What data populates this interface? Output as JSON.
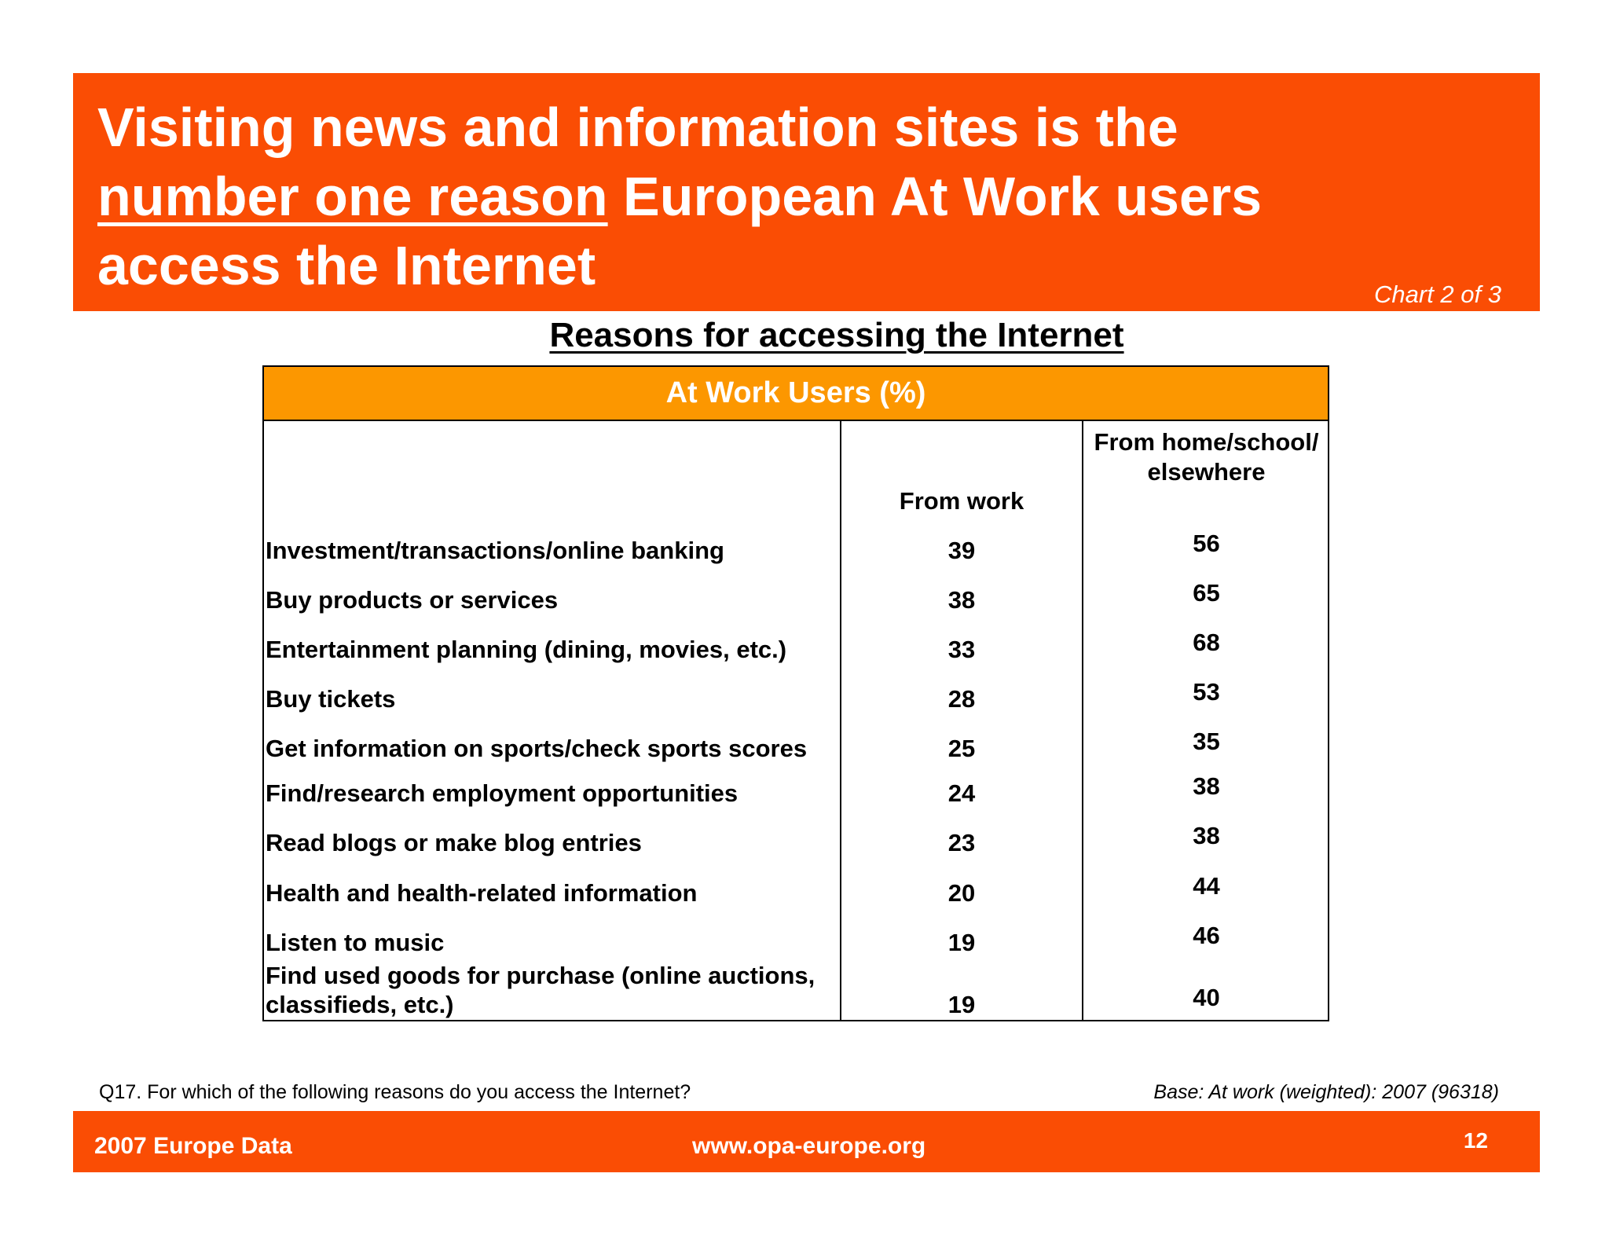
{
  "header": {
    "title_line1": "Visiting news and information sites is the",
    "title_underlined": "number one reason",
    "title_line2_rest": " European At Work users",
    "title_line3": "access the Internet",
    "chart_counter": "Chart 2 of 3"
  },
  "table": {
    "title": "Reasons for accessing the Internet",
    "group_header": "At Work Users (%)",
    "columns": [
      "From work",
      "From home/school/ elsewhere"
    ],
    "rows": [
      {
        "label": "Investment/transactions/online banking",
        "from_work": "39",
        "from_home": "56"
      },
      {
        "label": "Buy products or services",
        "from_work": "38",
        "from_home": "65"
      },
      {
        "label": "Entertainment planning (dining, movies, etc.)",
        "from_work": "33",
        "from_home": "68"
      },
      {
        "label": "Buy tickets",
        "from_work": "28",
        "from_home": "53"
      },
      {
        "label": "Get information on sports/check sports scores",
        "from_work": "25",
        "from_home": "35"
      },
      {
        "label": "Find/research employment opportunities",
        "from_work": "24",
        "from_home": "38"
      },
      {
        "label": "Read blogs or make blog entries",
        "from_work": "23",
        "from_home": "38"
      },
      {
        "label": "Health and health-related information",
        "from_work": "20",
        "from_home": "44"
      },
      {
        "label": "Listen to music",
        "from_work": "19",
        "from_home": "46"
      },
      {
        "label": "Find used goods for purchase (online auctions, classifieds, etc.)",
        "from_work": "19",
        "from_home": "40"
      }
    ]
  },
  "notes": {
    "question": "Q17. For which of the following reasons do you access the Internet?",
    "base": "Base: At work (weighted): 2007  (96318)"
  },
  "footer": {
    "left": "2007 Europe Data",
    "center": "www.opa-europe.org",
    "page_number": "12"
  },
  "colors": {
    "brand_orange": "#fa4d04",
    "header_amber": "#fc9700"
  }
}
